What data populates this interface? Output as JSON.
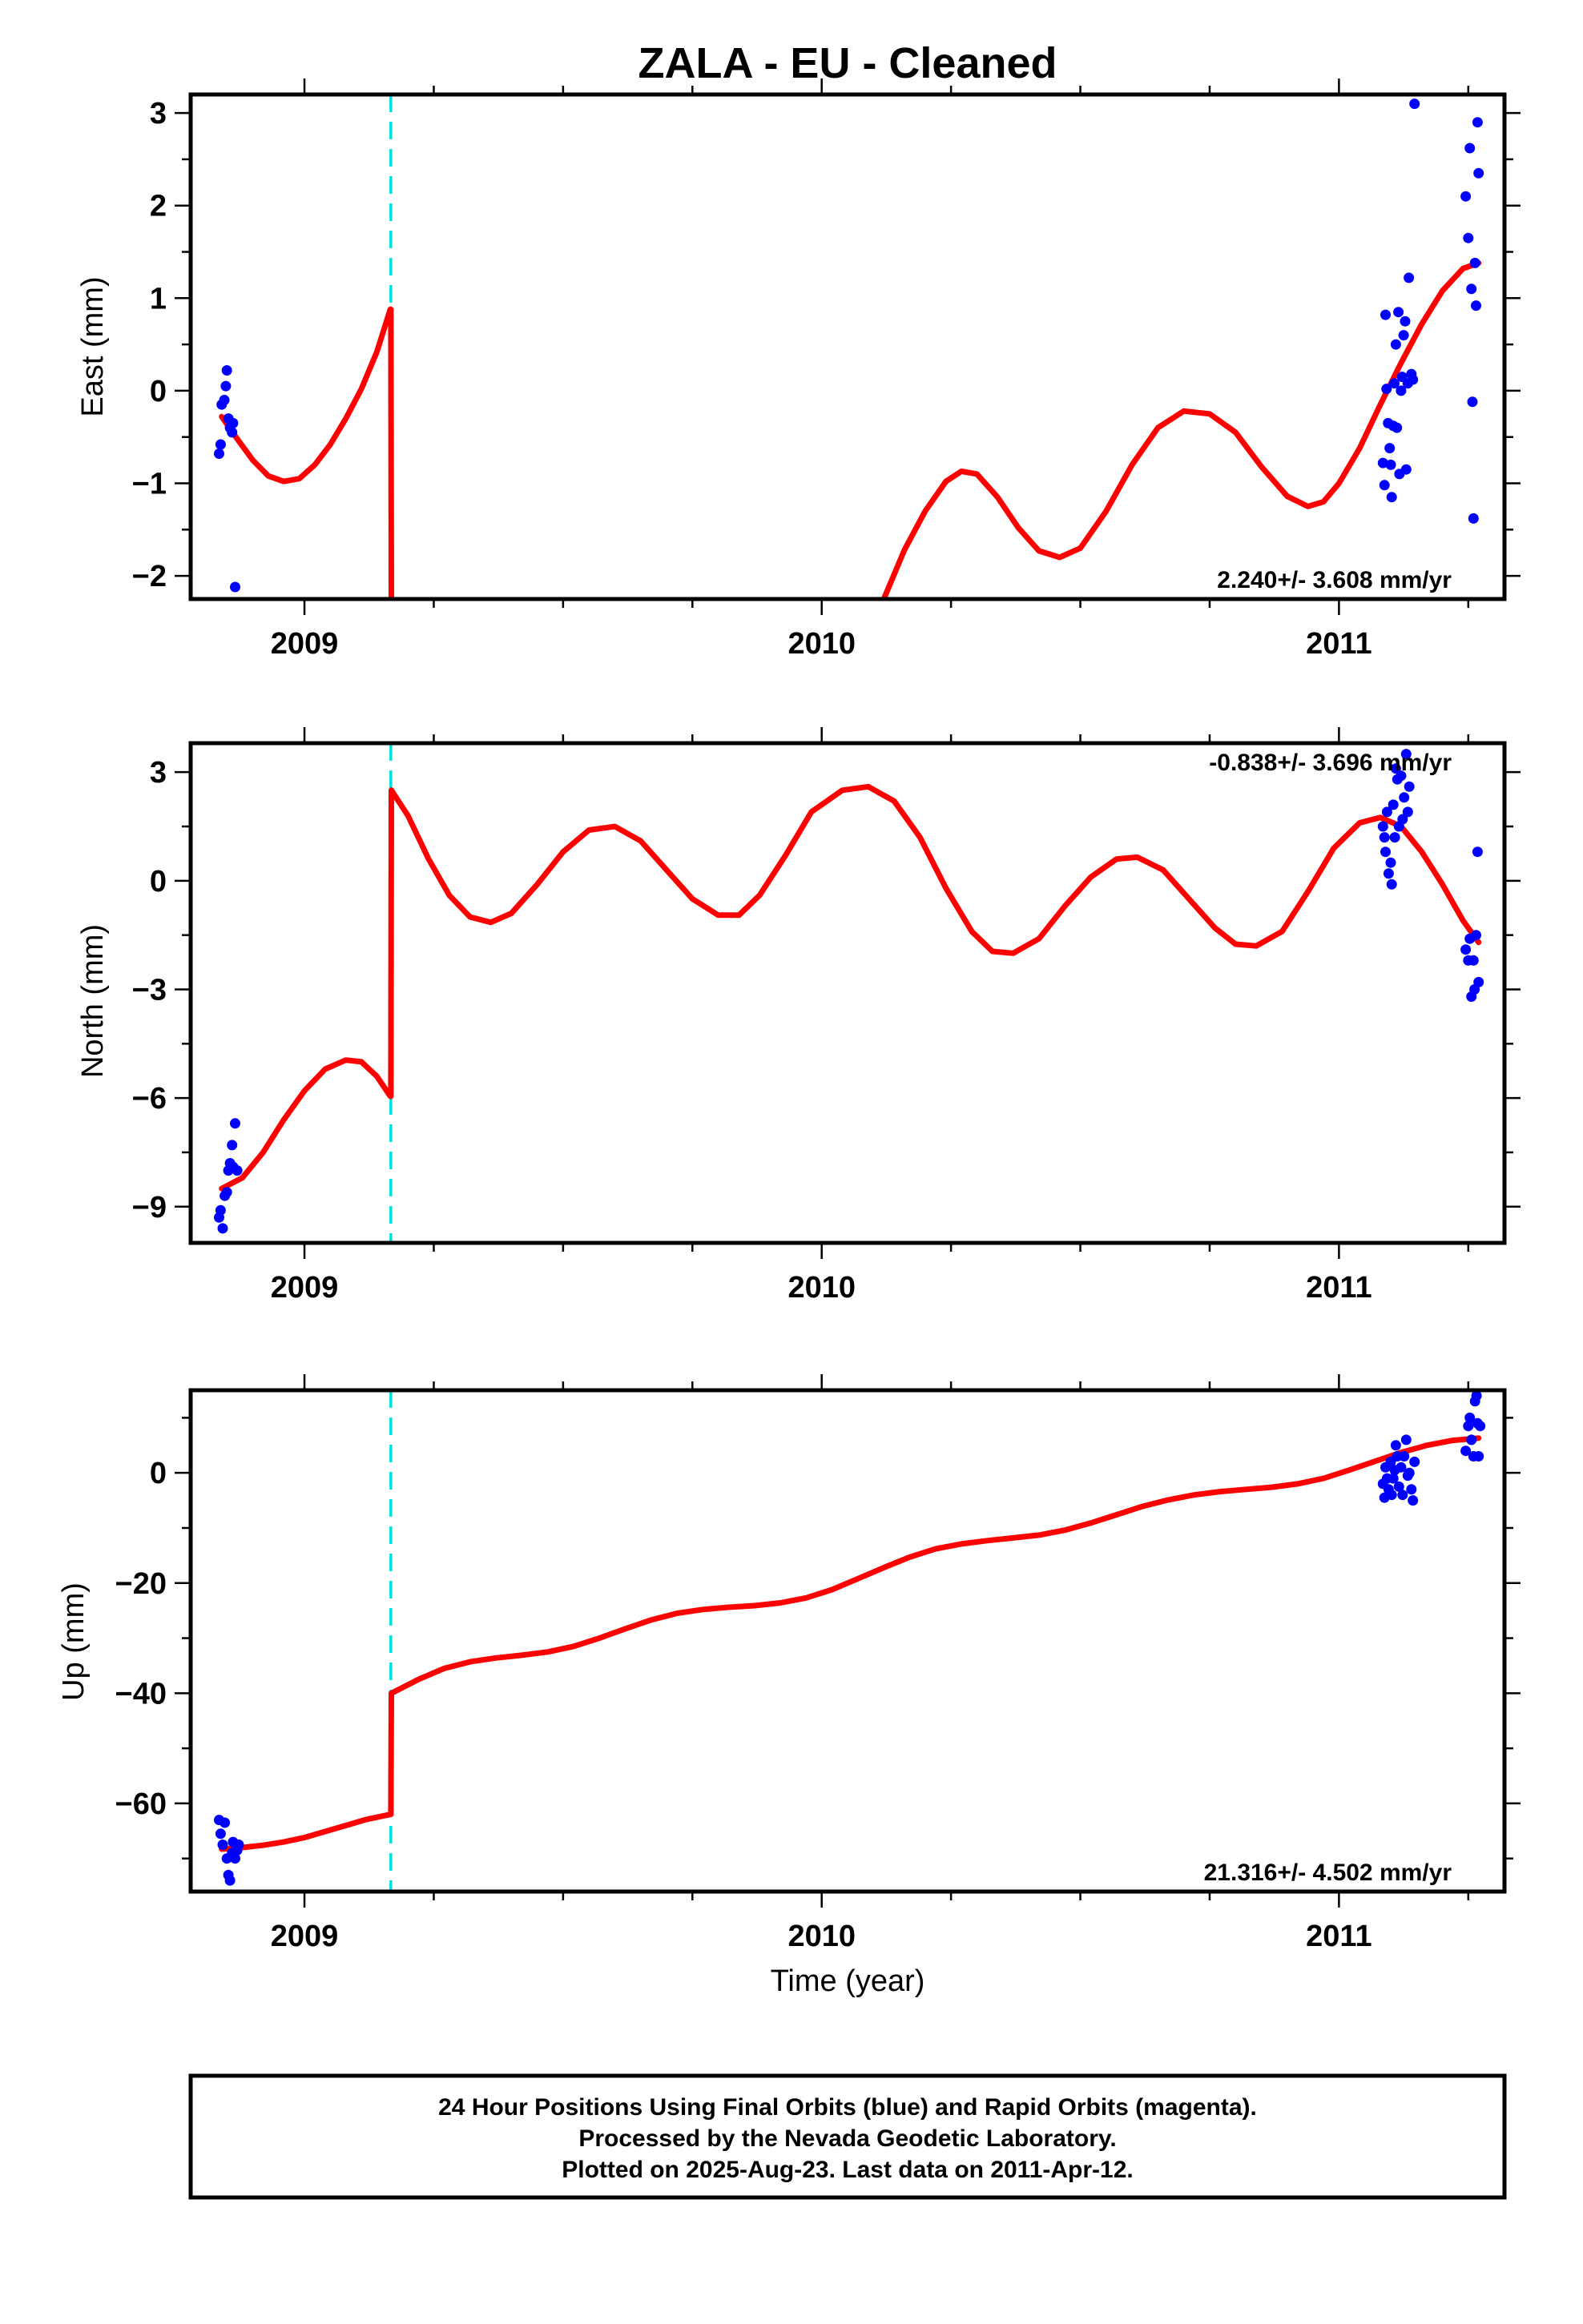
{
  "title": "ZALA  - EU - Cleaned",
  "x_axis_label": "Time (year)",
  "colors": {
    "data_points": "#0000ff",
    "model_fit": "#ff0000",
    "step_marker": "#00e0e0",
    "frame": "#000000"
  },
  "footer": {
    "line1": "24 Hour Positions Using Final Orbits (blue) and Rapid Orbits (magenta).",
    "line2": "Processed by the Nevada Geodetic Laboratory.",
    "line3": "Plotted on 2025-Aug-23. Last data on 2011-Apr-12."
  },
  "chart_data": [
    {
      "type": "scatter",
      "name": "east",
      "ylabel": "East (mm)",
      "xlabel": "",
      "xlim": [
        2008.78,
        2011.32
      ],
      "ylim": [
        -2.25,
        3.2
      ],
      "xticks": [
        2009,
        2010,
        2011
      ],
      "yticks": [
        -2,
        -1,
        0,
        1,
        2,
        3
      ],
      "ytick_labels": [
        "−2",
        "−1",
        "0",
        "1",
        "2",
        "3"
      ],
      "rate_label": "2.240+/- 3.608 mm/yr",
      "rate_position": "bottom-right",
      "step_epoch": 2009.167,
      "points": [
        [
          2008.835,
          -0.68
        ],
        [
          2008.838,
          -0.58
        ],
        [
          2008.84,
          -0.15
        ],
        [
          2008.845,
          -0.1
        ],
        [
          2008.848,
          0.05
        ],
        [
          2008.85,
          0.22
        ],
        [
          2008.853,
          -0.3
        ],
        [
          2008.856,
          -0.4
        ],
        [
          2008.86,
          -0.45
        ],
        [
          2008.862,
          -0.35
        ],
        [
          2008.866,
          -2.12
        ],
        [
          2011.085,
          -0.78
        ],
        [
          2011.088,
          -1.02
        ],
        [
          2011.09,
          0.82
        ],
        [
          2011.092,
          0.02
        ],
        [
          2011.095,
          -0.35
        ],
        [
          2011.098,
          -0.62
        ],
        [
          2011.1,
          -0.8
        ],
        [
          2011.102,
          -1.15
        ],
        [
          2011.105,
          -0.38
        ],
        [
          2011.107,
          0.08
        ],
        [
          2011.11,
          0.5
        ],
        [
          2011.112,
          -0.4
        ],
        [
          2011.115,
          0.85
        ],
        [
          2011.117,
          -0.9
        ],
        [
          2011.12,
          0.0
        ],
        [
          2011.122,
          0.15
        ],
        [
          2011.125,
          0.6
        ],
        [
          2011.128,
          0.75
        ],
        [
          2011.13,
          -0.85
        ],
        [
          2011.133,
          0.08
        ],
        [
          2011.135,
          1.22
        ],
        [
          2011.14,
          0.18
        ],
        [
          2011.143,
          0.12
        ],
        [
          2011.146,
          3.1
        ],
        [
          2011.245,
          2.1
        ],
        [
          2011.25,
          1.65
        ],
        [
          2011.253,
          2.62
        ],
        [
          2011.256,
          1.1
        ],
        [
          2011.258,
          -0.12
        ],
        [
          2011.26,
          -1.38
        ],
        [
          2011.263,
          1.38
        ],
        [
          2011.265,
          0.92
        ],
        [
          2011.268,
          2.9
        ],
        [
          2011.27,
          2.35
        ]
      ],
      "model_segments": [
        [
          [
            2008.84,
            -0.28
          ],
          [
            2008.87,
            -0.52
          ],
          [
            2008.9,
            -0.75
          ],
          [
            2008.93,
            -0.92
          ],
          [
            2008.96,
            -0.98
          ],
          [
            2008.99,
            -0.95
          ],
          [
            2009.02,
            -0.8
          ],
          [
            2009.05,
            -0.58
          ],
          [
            2009.08,
            -0.3
          ],
          [
            2009.11,
            0.02
          ],
          [
            2009.14,
            0.42
          ],
          [
            2009.166,
            0.88
          ]
        ],
        [
          [
            2009.167,
            0.88
          ],
          [
            2009.168,
            -2.25
          ]
        ],
        [
          [
            2010.12,
            -2.25
          ],
          [
            2010.16,
            -1.72
          ],
          [
            2010.2,
            -1.3
          ],
          [
            2010.24,
            -0.98
          ],
          [
            2010.27,
            -0.87
          ],
          [
            2010.3,
            -0.9
          ],
          [
            2010.34,
            -1.15
          ],
          [
            2010.38,
            -1.48
          ],
          [
            2010.42,
            -1.73
          ],
          [
            2010.46,
            -1.8
          ],
          [
            2010.5,
            -1.7
          ],
          [
            2010.55,
            -1.3
          ],
          [
            2010.6,
            -0.8
          ],
          [
            2010.65,
            -0.4
          ],
          [
            2010.7,
            -0.22
          ],
          [
            2010.75,
            -0.25
          ],
          [
            2010.8,
            -0.45
          ],
          [
            2010.85,
            -0.82
          ],
          [
            2010.9,
            -1.14
          ],
          [
            2010.94,
            -1.25
          ],
          [
            2010.97,
            -1.2
          ],
          [
            2011.0,
            -1.0
          ],
          [
            2011.04,
            -0.62
          ],
          [
            2011.08,
            -0.15
          ],
          [
            2011.12,
            0.3
          ],
          [
            2011.16,
            0.72
          ],
          [
            2011.2,
            1.08
          ],
          [
            2011.24,
            1.32
          ],
          [
            2011.27,
            1.38
          ]
        ]
      ]
    },
    {
      "type": "scatter",
      "name": "north",
      "ylabel": "North (mm)",
      "xlabel": "",
      "xlim": [
        2008.78,
        2011.32
      ],
      "ylim": [
        -10.0,
        3.8
      ],
      "xticks": [
        2009,
        2010,
        2011
      ],
      "yticks": [
        -9,
        -6,
        -3,
        0,
        3
      ],
      "ytick_labels": [
        "−9",
        "−6",
        "−3",
        "0",
        "3"
      ],
      "rate_label": "-0.838+/- 3.696 mm/yr",
      "rate_position": "top-right",
      "step_epoch": 2009.167,
      "points": [
        [
          2008.835,
          -9.3
        ],
        [
          2008.838,
          -9.1
        ],
        [
          2008.842,
          -9.6
        ],
        [
          2008.846,
          -8.7
        ],
        [
          2008.85,
          -8.6
        ],
        [
          2008.853,
          -8.0
        ],
        [
          2008.856,
          -7.8
        ],
        [
          2008.86,
          -7.3
        ],
        [
          2008.862,
          -7.9
        ],
        [
          2008.866,
          -6.7
        ],
        [
          2008.87,
          -8.0
        ],
        [
          2011.085,
          1.5
        ],
        [
          2011.088,
          1.2
        ],
        [
          2011.09,
          0.8
        ],
        [
          2011.093,
          1.9
        ],
        [
          2011.096,
          0.2
        ],
        [
          2011.1,
          0.5
        ],
        [
          2011.102,
          -0.1
        ],
        [
          2011.105,
          2.1
        ],
        [
          2011.108,
          1.2
        ],
        [
          2011.11,
          3.1
        ],
        [
          2011.113,
          2.8
        ],
        [
          2011.116,
          1.5
        ],
        [
          2011.12,
          2.9
        ],
        [
          2011.123,
          1.7
        ],
        [
          2011.126,
          2.3
        ],
        [
          2011.13,
          3.5
        ],
        [
          2011.133,
          1.9
        ],
        [
          2011.136,
          2.6
        ],
        [
          2011.245,
          -1.9
        ],
        [
          2011.25,
          -2.2
        ],
        [
          2011.253,
          -1.6
        ],
        [
          2011.256,
          -3.2
        ],
        [
          2011.26,
          -2.2
        ],
        [
          2011.262,
          -3.0
        ],
        [
          2011.265,
          -1.5
        ],
        [
          2011.268,
          0.8
        ],
        [
          2011.27,
          -2.8
        ]
      ],
      "model_segments": [
        [
          [
            2008.84,
            -8.5
          ],
          [
            2008.88,
            -8.2
          ],
          [
            2008.92,
            -7.5
          ],
          [
            2008.96,
            -6.6
          ],
          [
            2009.0,
            -5.8
          ],
          [
            2009.04,
            -5.2
          ],
          [
            2009.08,
            -4.95
          ],
          [
            2009.11,
            -5.0
          ],
          [
            2009.14,
            -5.4
          ],
          [
            2009.166,
            -5.95
          ]
        ],
        [
          [
            2009.167,
            -5.95
          ],
          [
            2009.168,
            2.5
          ]
        ],
        [
          [
            2009.168,
            2.5
          ],
          [
            2009.2,
            1.8
          ],
          [
            2009.24,
            0.6
          ],
          [
            2009.28,
            -0.4
          ],
          [
            2009.32,
            -1.0
          ],
          [
            2009.36,
            -1.15
          ],
          [
            2009.4,
            -0.9
          ],
          [
            2009.45,
            -0.1
          ],
          [
            2009.5,
            0.8
          ],
          [
            2009.55,
            1.4
          ],
          [
            2009.6,
            1.5
          ],
          [
            2009.65,
            1.1
          ],
          [
            2009.7,
            0.3
          ],
          [
            2009.75,
            -0.5
          ],
          [
            2009.8,
            -0.95
          ],
          [
            2009.84,
            -0.95
          ],
          [
            2009.88,
            -0.4
          ],
          [
            2009.93,
            0.7
          ],
          [
            2009.98,
            1.9
          ],
          [
            2010.04,
            2.5
          ],
          [
            2010.09,
            2.6
          ],
          [
            2010.14,
            2.2
          ],
          [
            2010.19,
            1.2
          ],
          [
            2010.24,
            -0.2
          ],
          [
            2010.29,
            -1.4
          ],
          [
            2010.33,
            -1.95
          ],
          [
            2010.37,
            -2.0
          ],
          [
            2010.42,
            -1.6
          ],
          [
            2010.47,
            -0.7
          ],
          [
            2010.52,
            0.1
          ],
          [
            2010.57,
            0.6
          ],
          [
            2010.61,
            0.65
          ],
          [
            2010.66,
            0.3
          ],
          [
            2010.71,
            -0.5
          ],
          [
            2010.76,
            -1.3
          ],
          [
            2010.8,
            -1.75
          ],
          [
            2010.84,
            -1.8
          ],
          [
            2010.89,
            -1.4
          ],
          [
            2010.94,
            -0.3
          ],
          [
            2010.99,
            0.9
          ],
          [
            2011.04,
            1.6
          ],
          [
            2011.08,
            1.75
          ],
          [
            2011.12,
            1.5
          ],
          [
            2011.16,
            0.8
          ],
          [
            2011.2,
            -0.1
          ],
          [
            2011.24,
            -1.1
          ],
          [
            2011.27,
            -1.7
          ]
        ]
      ]
    },
    {
      "type": "scatter",
      "name": "up",
      "ylabel": "Up (mm)",
      "xlabel": "Time (year)",
      "xlim": [
        2008.78,
        2011.32
      ],
      "ylim": [
        -76.0,
        15.0
      ],
      "xticks": [
        2009,
        2010,
        2011
      ],
      "yticks": [
        -60,
        -40,
        -20,
        0
      ],
      "ytick_labels": [
        "−60",
        "−40",
        "−20",
        "0"
      ],
      "rate_label": "21.316+/- 4.502 mm/yr",
      "rate_position": "bottom-right",
      "step_epoch": 2009.167,
      "points": [
        [
          2008.835,
          -63.0
        ],
        [
          2008.838,
          -65.5
        ],
        [
          2008.842,
          -67.5
        ],
        [
          2008.846,
          -63.5
        ],
        [
          2008.85,
          -70.0
        ],
        [
          2008.853,
          -73.0
        ],
        [
          2008.856,
          -74.0
        ],
        [
          2008.86,
          -69.0
        ],
        [
          2008.862,
          -67.0
        ],
        [
          2008.866,
          -70.0
        ],
        [
          2008.87,
          -68.5
        ],
        [
          2008.873,
          -67.5
        ],
        [
          2011.085,
          -2.0
        ],
        [
          2011.088,
          -4.5
        ],
        [
          2011.09,
          1.0
        ],
        [
          2011.093,
          -1.0
        ],
        [
          2011.096,
          -3.0
        ],
        [
          2011.1,
          2.0
        ],
        [
          2011.102,
          -4.0
        ],
        [
          2011.105,
          -1.0
        ],
        [
          2011.108,
          0.5
        ],
        [
          2011.11,
          5.0
        ],
        [
          2011.113,
          3.0
        ],
        [
          2011.116,
          -2.5
        ],
        [
          2011.12,
          1.0
        ],
        [
          2011.123,
          -4.0
        ],
        [
          2011.126,
          3.0
        ],
        [
          2011.13,
          6.0
        ],
        [
          2011.133,
          -0.5
        ],
        [
          2011.136,
          0.0
        ],
        [
          2011.14,
          -3.0
        ],
        [
          2011.143,
          -5.0
        ],
        [
          2011.146,
          2.0
        ],
        [
          2011.245,
          4.0
        ],
        [
          2011.25,
          8.5
        ],
        [
          2011.253,
          10.0
        ],
        [
          2011.256,
          6.0
        ],
        [
          2011.26,
          3.0
        ],
        [
          2011.263,
          13.0
        ],
        [
          2011.266,
          14.0
        ],
        [
          2011.268,
          9.0
        ],
        [
          2011.27,
          3.0
        ],
        [
          2011.273,
          8.5
        ]
      ],
      "model_segments": [
        [
          [
            2008.84,
            -68.3
          ],
          [
            2008.88,
            -68.0
          ],
          [
            2008.92,
            -67.6
          ],
          [
            2008.96,
            -67.0
          ],
          [
            2009.0,
            -66.2
          ],
          [
            2009.04,
            -65.1
          ],
          [
            2009.08,
            -64.0
          ],
          [
            2009.12,
            -62.9
          ],
          [
            2009.166,
            -62.0
          ]
        ],
        [
          [
            2009.167,
            -62.0
          ],
          [
            2009.168,
            -40.0
          ]
        ],
        [
          [
            2009.168,
            -40.0
          ],
          [
            2009.22,
            -37.5
          ],
          [
            2009.27,
            -35.5
          ],
          [
            2009.32,
            -34.3
          ],
          [
            2009.37,
            -33.6
          ],
          [
            2009.42,
            -33.1
          ],
          [
            2009.47,
            -32.5
          ],
          [
            2009.52,
            -31.5
          ],
          [
            2009.57,
            -30.0
          ],
          [
            2009.62,
            -28.3
          ],
          [
            2009.67,
            -26.7
          ],
          [
            2009.72,
            -25.5
          ],
          [
            2009.77,
            -24.8
          ],
          [
            2009.82,
            -24.4
          ],
          [
            2009.87,
            -24.1
          ],
          [
            2009.92,
            -23.6
          ],
          [
            2009.97,
            -22.7
          ],
          [
            2010.02,
            -21.2
          ],
          [
            2010.07,
            -19.2
          ],
          [
            2010.12,
            -17.2
          ],
          [
            2010.17,
            -15.3
          ],
          [
            2010.22,
            -13.8
          ],
          [
            2010.27,
            -12.9
          ],
          [
            2010.32,
            -12.3
          ],
          [
            2010.37,
            -11.8
          ],
          [
            2010.42,
            -11.3
          ],
          [
            2010.47,
            -10.4
          ],
          [
            2010.52,
            -9.1
          ],
          [
            2010.57,
            -7.6
          ],
          [
            2010.62,
            -6.1
          ],
          [
            2010.67,
            -4.9
          ],
          [
            2010.72,
            -4.0
          ],
          [
            2010.77,
            -3.4
          ],
          [
            2010.82,
            -3.0
          ],
          [
            2010.87,
            -2.6
          ],
          [
            2010.92,
            -2.0
          ],
          [
            2010.97,
            -1.0
          ],
          [
            2011.02,
            0.5
          ],
          [
            2011.07,
            2.1
          ],
          [
            2011.12,
            3.7
          ],
          [
            2011.17,
            5.0
          ],
          [
            2011.22,
            5.9
          ],
          [
            2011.27,
            6.3
          ]
        ]
      ]
    }
  ]
}
